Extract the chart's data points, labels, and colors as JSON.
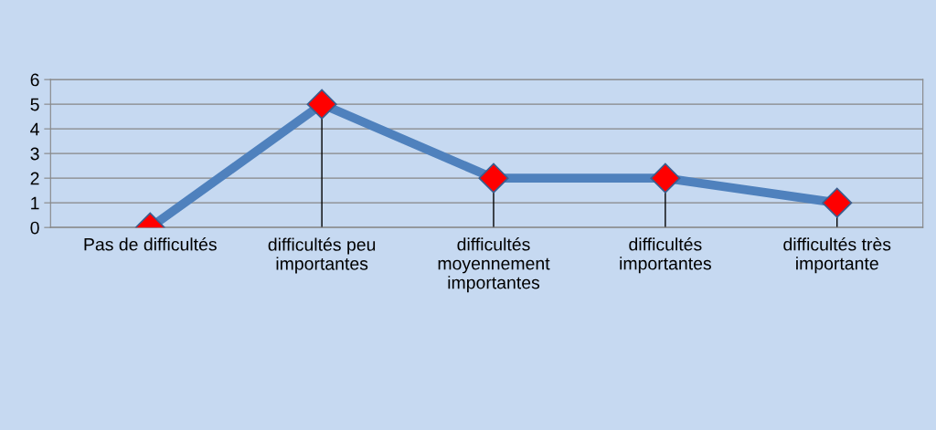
{
  "chart_data": {
    "type": "line",
    "categories": [
      "Pas de difficultés",
      "difficultés peu\nimportantes",
      "difficultés\nmoyennement\nimportantes",
      "difficultés\nimportantes",
      "difficultés très\nimportante"
    ],
    "series": [
      {
        "color": "#4f81bd",
        "values": [
          0,
          5,
          2,
          2,
          1
        ],
        "errors": [
          [
            0,
            0
          ],
          [
            0,
            5
          ],
          [
            0,
            2
          ],
          [
            0,
            2
          ],
          [
            0,
            1
          ]
        ]
      }
    ],
    "ylim": [
      0,
      6
    ],
    "yticks": [
      0,
      1,
      2,
      3,
      4,
      5,
      6
    ],
    "grid": "y",
    "marker": "diamond",
    "line_style": "solid"
  }
}
